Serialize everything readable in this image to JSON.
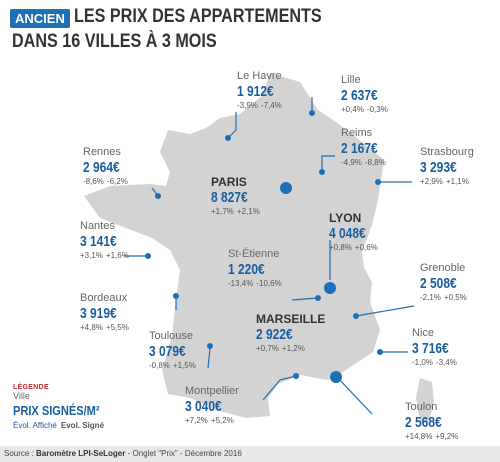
{
  "header": {
    "badge": "ANCIEN",
    "title_line1": "LES PRIX DES APPARTEMENTS",
    "title_line2": "DANS 16 VILLES À 3 MOIS"
  },
  "colors": {
    "accent": "#1f6fb5",
    "map_fill": "#d3d3d3",
    "legend_title": "#c1272d"
  },
  "cities": [
    {
      "id": "le-havre",
      "name": "Le Havre",
      "price": "1 912€",
      "evo_affiche": "-3,9%",
      "evo_signe": "-7,4%"
    },
    {
      "id": "lille",
      "name": "Lille",
      "price": "2 637€",
      "evo_affiche": "+0,4%",
      "evo_signe": "-0,3%"
    },
    {
      "id": "reims",
      "name": "Reims",
      "price": "2 167€",
      "evo_affiche": "-4,9%",
      "evo_signe": "-8,8%"
    },
    {
      "id": "strasbourg",
      "name": "Strasbourg",
      "price": "3 293€",
      "evo_affiche": "+2,9%",
      "evo_signe": "+1,1%"
    },
    {
      "id": "rennes",
      "name": "Rennes",
      "price": "2 964€",
      "evo_affiche": "-8,6%",
      "evo_signe": "-6,2%"
    },
    {
      "id": "paris",
      "name": "PARIS",
      "price": "8 827€",
      "evo_affiche": "+1,7%",
      "evo_signe": "+2,1%"
    },
    {
      "id": "nantes",
      "name": "Nantes",
      "price": "3 141€",
      "evo_affiche": "+3,1%",
      "evo_signe": "+1,6%"
    },
    {
      "id": "lyon",
      "name": "LYON",
      "price": "4 048€",
      "evo_affiche": "+0,8%",
      "evo_signe": "+0,6%"
    },
    {
      "id": "st-etienne",
      "name": "St-Étienne",
      "price": "1 220€",
      "evo_affiche": "-13,4%",
      "evo_signe": "-10,6%"
    },
    {
      "id": "grenoble",
      "name": "Grenoble",
      "price": "2 508€",
      "evo_affiche": "-2,1%",
      "evo_signe": "+0,5%"
    },
    {
      "id": "bordeaux",
      "name": "Bordeaux",
      "price": "3 919€",
      "evo_affiche": "+4,8%",
      "evo_signe": "+5,5%"
    },
    {
      "id": "marseille",
      "name": "MARSEILLE",
      "price": "2 922€",
      "evo_affiche": "+0,7%",
      "evo_signe": "+1,2%"
    },
    {
      "id": "toulouse",
      "name": "Toulouse",
      "price": "3 079€",
      "evo_affiche": "-0,8%",
      "evo_signe": "+1,5%"
    },
    {
      "id": "nice",
      "name": "Nice",
      "price": "3 716€",
      "evo_affiche": "-1,0%",
      "evo_signe": "-3,4%"
    },
    {
      "id": "montpellier",
      "name": "Montpellier",
      "price": "3 040€",
      "evo_affiche": "+7,2%",
      "evo_signe": "+5,2%"
    },
    {
      "id": "toulon",
      "name": "Toulon",
      "price": "2 568€",
      "evo_affiche": "+14,8%",
      "evo_signe": "+9,2%"
    }
  ],
  "legend": {
    "title": "LÉGENDE",
    "ville": "Ville",
    "prix": "PRIX SIGNÉS/M²",
    "evol_affiche": "Évol. Affiché",
    "evol_signe": "Evol. Signé"
  },
  "footer": {
    "prefix": "Source : ",
    "source": "Baromètre LPI-SeLoger",
    "rest": " - Onglet \"Prix\" - Décembre 2016"
  }
}
